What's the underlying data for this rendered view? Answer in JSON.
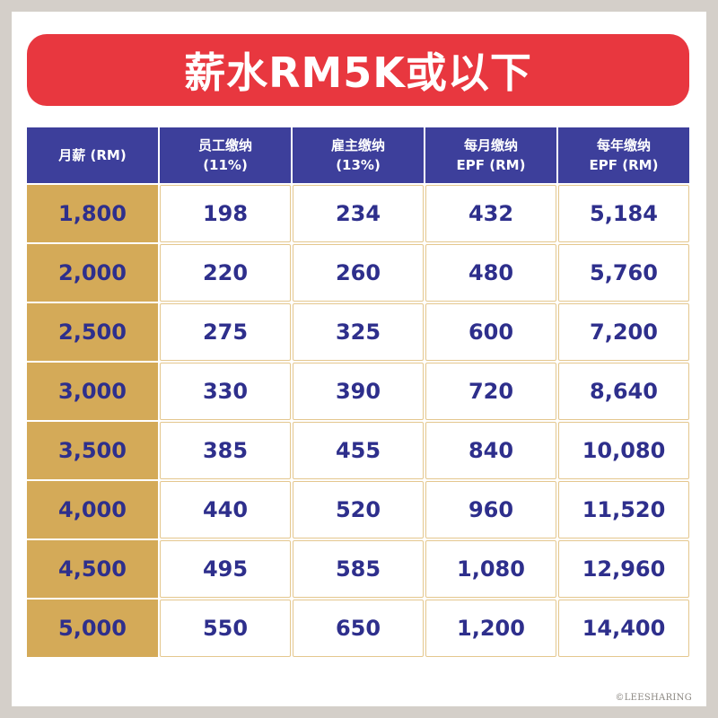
{
  "title": "薪水RM5K或以下",
  "table": {
    "headers": [
      {
        "line1": "月薪 (RM)",
        "line2": ""
      },
      {
        "line1": "员工缴纳",
        "line2": "(11%)"
      },
      {
        "line1": "雇主缴纳",
        "line2": "(13%)"
      },
      {
        "line1": "每月缴纳",
        "line2": "EPF (RM)"
      },
      {
        "line1": "每年缴纳",
        "line2": "EPF (RM)"
      }
    ],
    "rows": [
      [
        "1,800",
        "198",
        "234",
        "432",
        "5,184"
      ],
      [
        "2,000",
        "220",
        "260",
        "480",
        "5,760"
      ],
      [
        "2,500",
        "275",
        "325",
        "600",
        "7,200"
      ],
      [
        "3,000",
        "330",
        "390",
        "720",
        "8,640"
      ],
      [
        "3,500",
        "385",
        "455",
        "840",
        "10,080"
      ],
      [
        "4,000",
        "440",
        "520",
        "960",
        "11,520"
      ],
      [
        "4,500",
        "495",
        "585",
        "1,080",
        "12,960"
      ],
      [
        "5,000",
        "550",
        "650",
        "1,200",
        "14,400"
      ]
    ]
  },
  "watermark": "©LEESHARING",
  "colors": {
    "banner": "#e8373f",
    "header": "#3d3f9b",
    "salary_column": "#d4aa58",
    "value_text": "#2e2f8c",
    "cell_border": "#e4c78e"
  }
}
